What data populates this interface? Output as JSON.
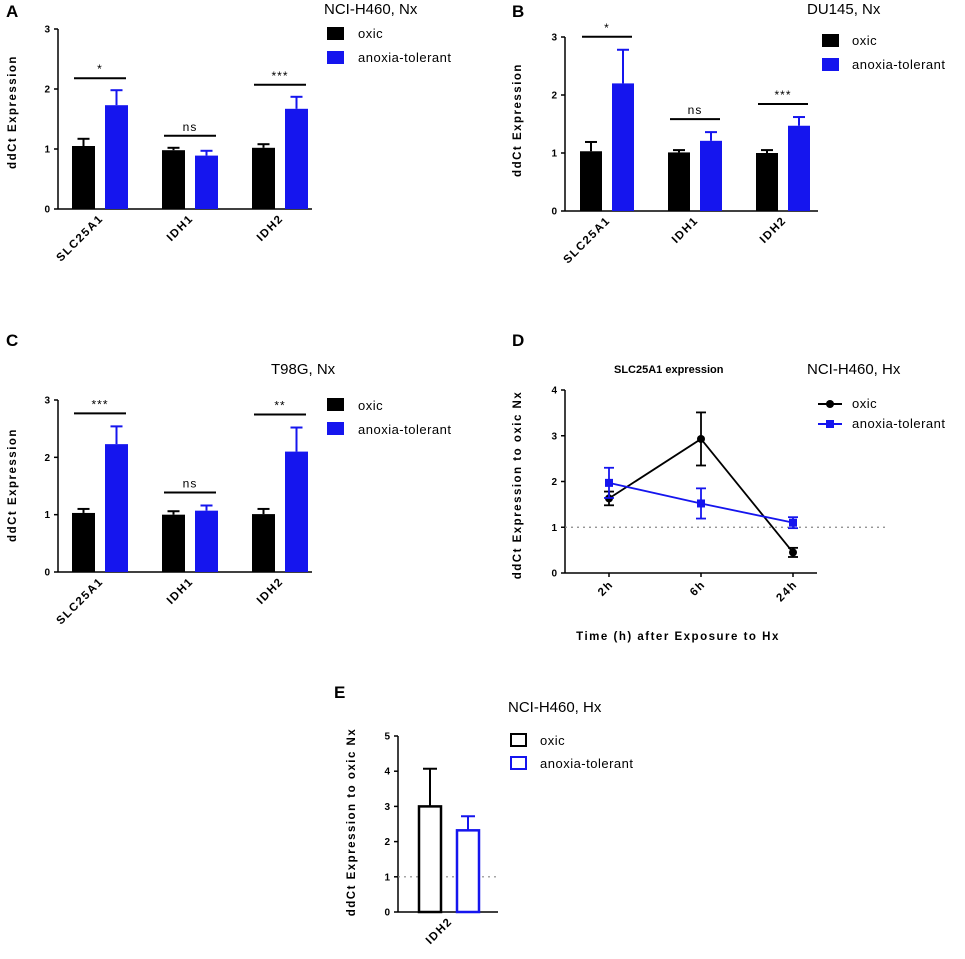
{
  "colors": {
    "oxic": "#000000",
    "anoxia": "#1515ee",
    "axis": "#000000",
    "ref": "#888888"
  },
  "chart_data": [
    {
      "panel": "A",
      "type": "bar",
      "title": "NCI-H460, Nx",
      "ylabel": "ddCt Expression",
      "ylim": [
        0,
        3
      ],
      "yticks": [
        "0",
        "1",
        "2",
        "3"
      ],
      "categories": [
        "SLC25A1",
        "IDH1",
        "IDH2"
      ],
      "legend": [
        "oxic",
        "anoxia-tolerant"
      ],
      "series": [
        {
          "name": "oxic",
          "values": [
            1.05,
            0.98,
            1.02
          ],
          "errors": [
            0.12,
            0.04,
            0.06
          ]
        },
        {
          "name": "anoxia-tolerant",
          "values": [
            1.73,
            0.89,
            1.67
          ],
          "errors": [
            0.25,
            0.08,
            0.2
          ]
        }
      ],
      "significance": [
        "*",
        "ns",
        "***"
      ]
    },
    {
      "panel": "B",
      "type": "bar",
      "title": "DU145, Nx",
      "ylabel": "ddCt Expression",
      "ylim": [
        0,
        3
      ],
      "yticks": [
        "0",
        "1",
        "2",
        "3"
      ],
      "categories": [
        "SLC25A1",
        "IDH1",
        "IDH2"
      ],
      "legend": [
        "oxic",
        "anoxia-tolerant"
      ],
      "series": [
        {
          "name": "oxic",
          "values": [
            1.03,
            1.01,
            1.0
          ],
          "errors": [
            0.16,
            0.04,
            0.05
          ]
        },
        {
          "name": "anoxia-tolerant",
          "values": [
            2.2,
            1.21,
            1.47
          ],
          "errors": [
            0.58,
            0.15,
            0.15
          ]
        }
      ],
      "significance": [
        "*",
        "ns",
        "***"
      ]
    },
    {
      "panel": "C",
      "type": "bar",
      "title": "T98G, Nx",
      "ylabel": "ddCt Expression",
      "ylim": [
        0,
        3
      ],
      "yticks": [
        "0",
        "1",
        "2",
        "3"
      ],
      "categories": [
        "SLC25A1",
        "IDH1",
        "IDH2"
      ],
      "legend": [
        "oxic",
        "anoxia-tolerant"
      ],
      "series": [
        {
          "name": "oxic",
          "values": [
            1.03,
            1.0,
            1.01
          ],
          "errors": [
            0.07,
            0.06,
            0.09
          ]
        },
        {
          "name": "anoxia-tolerant",
          "values": [
            2.23,
            1.07,
            2.1
          ],
          "errors": [
            0.31,
            0.09,
            0.42
          ]
        }
      ],
      "significance": [
        "***",
        "ns",
        "**"
      ]
    },
    {
      "panel": "D",
      "type": "line",
      "title": "NCI-H460, Hx",
      "subtitle": "SLC25A1 expression",
      "ylabel": "ddCt Expression to oxic Nx",
      "xlabel": "Time (h) after Exposure to Hx",
      "ylim": [
        0,
        4
      ],
      "yticks": [
        "0",
        "1",
        "2",
        "3",
        "4"
      ],
      "x": [
        "2h",
        "6h",
        "24h"
      ],
      "reference_line": 1,
      "legend": [
        "oxic",
        "anoxia-tolerant"
      ],
      "series": [
        {
          "name": "oxic",
          "marker": "circle",
          "values": [
            1.63,
            2.93,
            0.45
          ],
          "errors": [
            0.15,
            0.58,
            0.1
          ]
        },
        {
          "name": "anoxia-tolerant",
          "marker": "square",
          "values": [
            1.97,
            1.52,
            1.1
          ],
          "errors": [
            0.33,
            0.33,
            0.12
          ]
        }
      ]
    },
    {
      "panel": "E",
      "type": "bar",
      "title": "NCI-H460, Hx",
      "ylabel": "ddCt Expression to oxic Nx",
      "ylim": [
        0,
        5
      ],
      "yticks": [
        "0",
        "1",
        "2",
        "3",
        "4",
        "5"
      ],
      "categories": [
        "IDH2"
      ],
      "reference_line": 1,
      "style": "open",
      "legend": [
        "oxic",
        "anoxia-tolerant"
      ],
      "series": [
        {
          "name": "oxic",
          "values": [
            3.0
          ],
          "errors": [
            1.07
          ]
        },
        {
          "name": "anoxia-tolerant",
          "values": [
            2.32
          ],
          "errors": [
            0.4
          ]
        }
      ]
    }
  ]
}
